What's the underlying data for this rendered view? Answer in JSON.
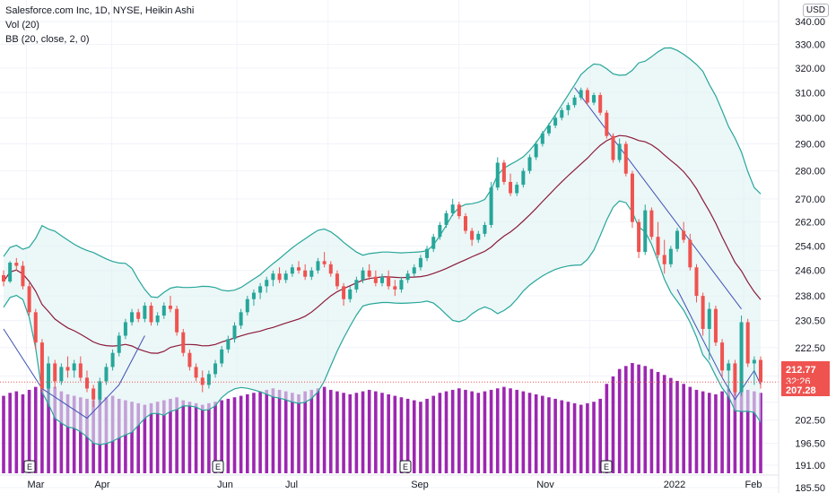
{
  "legend": {
    "title": "Salesforce.com Inc, 1D, NYSE, Heikin Ashi",
    "vol": "Vol (20)",
    "bb": "BB (20, close, 2, 0)"
  },
  "currency": "USD",
  "colors": {
    "up": "#26a69a",
    "down": "#ef5350",
    "volume": "#9c27b0",
    "bb_line": "#26a69a",
    "bb_fill": "#e0f2f1",
    "basis": "#8b1a3a",
    "trendline": "#3f51b5",
    "price_badge": "#ef5350",
    "low_badge": "#ef5350",
    "timer_badge": "#ef5350"
  },
  "badges": {
    "price": "212.77",
    "timer": "32:26",
    "low": "207.28"
  },
  "earnings_marker": "E",
  "chart_data": {
    "type": "candlestick",
    "title": "Salesforce.com Inc, 1D, NYSE, Heikin Ashi",
    "y_ticks": [
      "340.00",
      "330.00",
      "320.00",
      "310.00",
      "300.00",
      "290.00",
      "280.00",
      "270.00",
      "262.00",
      "254.00",
      "246.00",
      "238.00",
      "230.50",
      "222.50",
      "214.50",
      "207.28",
      "202.50",
      "196.50",
      "191.00",
      "185.50"
    ],
    "x_ticks": [
      "Mar",
      "Apr",
      "Jun",
      "Jul",
      "Sep",
      "Nov",
      "2022",
      "Feb"
    ],
    "y_scale": "log",
    "ylim": [
      185.5,
      340
    ],
    "last_price": 212.77,
    "earnings_x_index": [
      5,
      38,
      72,
      107
    ],
    "series": [
      {
        "name": "Salesforce.com Inc",
        "ohlc": [
          [
            244.5,
            246.0,
            241.0,
            242.5
          ],
          [
            242.5,
            249.0,
            242.0,
            248.5
          ],
          [
            248.5,
            250.0,
            246.0,
            247.5
          ],
          [
            247.5,
            249.0,
            240.0,
            241.0
          ],
          [
            241.0,
            242.0,
            232.0,
            233.0
          ],
          [
            233.0,
            234.0,
            222.0,
            224.0
          ],
          [
            224.0,
            225.0,
            210.0,
            211.0
          ],
          [
            211.0,
            220.0,
            206.0,
            218.0
          ],
          [
            218.0,
            219.0,
            211.0,
            213.0
          ],
          [
            213.0,
            218.0,
            212.0,
            217.0
          ],
          [
            217.0,
            220.0,
            214.0,
            216.0
          ],
          [
            216.0,
            219.0,
            214.0,
            218.0
          ],
          [
            218.0,
            220.0,
            213.0,
            214.0
          ],
          [
            214.0,
            216.0,
            210.0,
            211.0
          ],
          [
            211.0,
            212.0,
            206.0,
            208.0
          ],
          [
            208.0,
            214.0,
            207.0,
            213.0
          ],
          [
            213.0,
            218.0,
            212.0,
            217.0
          ],
          [
            217.0,
            222.0,
            216.0,
            221.0
          ],
          [
            221.0,
            227.0,
            220.0,
            226.0
          ],
          [
            226.0,
            231.0,
            225.0,
            230.0
          ],
          [
            230.0,
            234.0,
            229.0,
            233.0
          ],
          [
            233.0,
            234.0,
            230.0,
            231.0
          ],
          [
            231.0,
            236.0,
            230.0,
            235.0
          ],
          [
            235.0,
            236.0,
            229.0,
            230.0
          ],
          [
            230.0,
            233.0,
            229.0,
            232.0
          ],
          [
            232.0,
            236.0,
            231.0,
            235.0
          ],
          [
            235.0,
            238.0,
            233.0,
            234.0
          ],
          [
            234.0,
            235.0,
            226.0,
            227.0
          ],
          [
            227.0,
            228.0,
            220.0,
            221.0
          ],
          [
            221.0,
            222.0,
            216.0,
            217.0
          ],
          [
            217.0,
            218.0,
            213.0,
            214.0
          ],
          [
            214.0,
            216.0,
            210.0,
            212.0
          ],
          [
            212.0,
            216.0,
            211.0,
            215.0
          ],
          [
            215.0,
            219.0,
            214.0,
            218.0
          ],
          [
            218.0,
            223.0,
            217.0,
            222.0
          ],
          [
            222.0,
            226.0,
            221.0,
            225.0
          ],
          [
            225.0,
            230.0,
            224.0,
            229.0
          ],
          [
            229.0,
            234.0,
            228.0,
            233.0
          ],
          [
            233.0,
            238.0,
            232.0,
            237.0
          ],
          [
            237.0,
            240.0,
            235.0,
            239.0
          ],
          [
            239.0,
            242.0,
            237.0,
            241.0
          ],
          [
            241.0,
            244.0,
            239.0,
            243.0
          ],
          [
            243.0,
            246.0,
            241.0,
            245.0
          ],
          [
            245.0,
            247.0,
            242.0,
            243.0
          ],
          [
            243.0,
            246.0,
            242.0,
            245.0
          ],
          [
            245.0,
            248.0,
            244.0,
            247.0
          ],
          [
            247.0,
            249.0,
            245.0,
            246.0
          ],
          [
            246.0,
            248.0,
            243.0,
            244.0
          ],
          [
            244.0,
            247.0,
            243.0,
            246.0
          ],
          [
            246.0,
            250.0,
            245.0,
            249.0
          ],
          [
            249.0,
            252.0,
            247.0,
            248.0
          ],
          [
            248.0,
            249.0,
            244.0,
            245.0
          ],
          [
            245.0,
            246.0,
            240.0,
            241.0
          ],
          [
            241.0,
            242.0,
            235.0,
            237.0
          ],
          [
            237.0,
            241.0,
            236.0,
            240.0
          ],
          [
            240.0,
            244.0,
            239.0,
            243.0
          ],
          [
            243.0,
            247.0,
            242.0,
            246.0
          ],
          [
            246.0,
            248.0,
            243.0,
            244.0
          ],
          [
            244.0,
            246.0,
            241.0,
            242.0
          ],
          [
            242.0,
            245.0,
            241.0,
            244.0
          ],
          [
            244.0,
            246.0,
            240.0,
            241.0
          ],
          [
            241.0,
            243.0,
            238.0,
            240.0
          ],
          [
            240.0,
            244.0,
            239.0,
            243.0
          ],
          [
            243.0,
            246.0,
            242.0,
            245.0
          ],
          [
            245.0,
            248.0,
            244.0,
            247.0
          ],
          [
            247.0,
            251.0,
            246.0,
            250.0
          ],
          [
            250.0,
            254.0,
            249.0,
            253.0
          ],
          [
            253.0,
            258.0,
            252.0,
            257.0
          ],
          [
            257.0,
            262.0,
            256.0,
            261.0
          ],
          [
            261.0,
            266.0,
            260.0,
            265.0
          ],
          [
            265.0,
            270.0,
            264.0,
            268.0
          ],
          [
            268.0,
            269.0,
            263.0,
            264.0
          ],
          [
            264.0,
            265.0,
            258.0,
            259.0
          ],
          [
            259.0,
            260.0,
            254.0,
            256.0
          ],
          [
            256.0,
            259.0,
            255.0,
            258.0
          ],
          [
            258.0,
            262.0,
            257.0,
            261.0
          ],
          [
            261.0,
            276.0,
            260.0,
            274.0
          ],
          [
            274.0,
            285.0,
            273.0,
            283.0
          ],
          [
            283.0,
            284.0,
            275.0,
            276.0
          ],
          [
            276.0,
            279.0,
            271.0,
            272.0
          ],
          [
            272.0,
            276.0,
            271.0,
            275.0
          ],
          [
            275.0,
            281.0,
            274.0,
            280.0
          ],
          [
            280.0,
            286.0,
            279.0,
            285.0
          ],
          [
            285.0,
            291.0,
            284.0,
            290.0
          ],
          [
            290.0,
            295.0,
            289.0,
            294.0
          ],
          [
            294.0,
            298.0,
            293.0,
            297.0
          ],
          [
            297.0,
            301.0,
            296.0,
            300.0
          ],
          [
            300.0,
            304.0,
            299.0,
            303.0
          ],
          [
            303.0,
            306.0,
            301.0,
            305.0
          ],
          [
            305.0,
            309.0,
            304.0,
            308.0
          ],
          [
            308.0,
            312.0,
            307.0,
            311.0
          ],
          [
            311.0,
            312.0,
            305.0,
            306.0
          ],
          [
            306.0,
            310.0,
            305.0,
            309.0
          ],
          [
            309.0,
            310.0,
            301.0,
            302.0
          ],
          [
            302.0,
            303.0,
            292.0,
            293.0
          ],
          [
            293.0,
            294.0,
            283.0,
            284.0
          ],
          [
            284.0,
            292.0,
            283.0,
            290.0
          ],
          [
            290.0,
            291.0,
            278.0,
            279.0
          ],
          [
            279.0,
            280.0,
            260.0,
            262.0
          ],
          [
            262.0,
            263.0,
            250.0,
            252.0
          ],
          [
            252.0,
            268.0,
            251.0,
            266.0
          ],
          [
            266.0,
            267.0,
            256.0,
            257.0
          ],
          [
            257.0,
            262.0,
            250.0,
            251.0
          ],
          [
            251.0,
            256.0,
            245.0,
            248.0
          ],
          [
            248.0,
            254.0,
            247.0,
            253.0
          ],
          [
            253.0,
            260.0,
            252.0,
            259.0
          ],
          [
            259.0,
            262.0,
            255.0,
            256.0
          ],
          [
            256.0,
            258.0,
            246.0,
            247.0
          ],
          [
            247.0,
            248.0,
            236.0,
            238.0
          ],
          [
            238.0,
            239.0,
            226.0,
            228.0
          ],
          [
            228.0,
            236.0,
            219.0,
            234.0
          ],
          [
            234.0,
            235.0,
            223.0,
            224.0
          ],
          [
            224.0,
            225.0,
            214.0,
            216.0
          ],
          [
            216.0,
            219.0,
            210.0,
            218.0
          ],
          [
            218.0,
            219.0,
            209.0,
            210.0
          ],
          [
            210.0,
            232.0,
            209.0,
            230.0
          ],
          [
            230.0,
            231.0,
            217.0,
            218.0
          ],
          [
            218.0,
            220.0,
            212.0,
            219.0
          ],
          [
            219.0,
            220.0,
            211.0,
            212.77
          ]
        ]
      },
      {
        "name": "Vol (20)",
        "values": [
          52,
          54,
          55,
          53,
          56,
          58,
          60,
          62,
          58,
          55,
          53,
          52,
          51,
          50,
          49,
          50,
          51,
          52,
          50,
          49,
          48,
          47,
          46,
          47,
          48,
          49,
          50,
          51,
          49,
          48,
          47,
          46,
          47,
          48,
          49,
          50,
          51,
          52,
          53,
          54,
          55,
          56,
          57,
          56,
          55,
          54,
          53,
          55,
          56,
          57,
          58,
          56,
          55,
          54,
          53,
          54,
          55,
          56,
          55,
          54,
          53,
          52,
          51,
          50,
          49,
          48,
          50,
          52,
          54,
          55,
          56,
          57,
          56,
          55,
          54,
          55,
          56,
          57,
          58,
          57,
          56,
          55,
          54,
          53,
          52,
          51,
          50,
          49,
          48,
          47,
          46,
          47,
          48,
          50,
          60,
          65,
          70,
          72,
          74,
          73,
          72,
          70,
          68,
          66,
          64,
          62,
          60,
          58,
          56,
          55,
          54,
          53,
          55,
          57,
          60,
          58,
          56,
          55,
          54
        ]
      }
    ]
  }
}
